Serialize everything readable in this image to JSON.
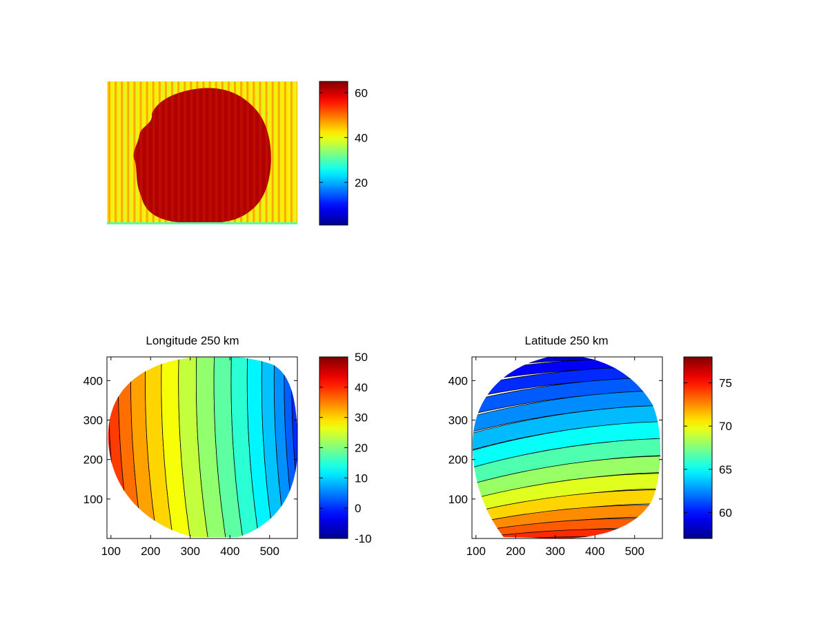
{
  "figure": {
    "colormap": "jet",
    "colormap_stops": [
      "#00008f",
      "#0000ff",
      "#00ffff",
      "#ffff00",
      "#ff0000",
      "#800000"
    ]
  },
  "chart_data": [
    {
      "id": "image-panel",
      "type": "heatmap",
      "title": "",
      "xlabel": "",
      "ylabel": "",
      "axes_visible": false,
      "description_values": {
        "background_level": 42,
        "disk_level": 62,
        "edge_line_level": 30
      },
      "colorbar": {
        "range": [
          1,
          65
        ],
        "ticks": [
          20,
          40,
          60
        ]
      }
    },
    {
      "id": "longitude-panel",
      "type": "heatmap",
      "title": "Longitude 250 km",
      "xlabel": "",
      "ylabel": "",
      "xlim": [
        90,
        570
      ],
      "ylim": [
        0,
        460
      ],
      "xticks": [
        100,
        200,
        300,
        400,
        500
      ],
      "yticks": [
        100,
        200,
        300,
        400
      ],
      "contour_lines": true,
      "colorbar": {
        "range": [
          -10,
          50
        ],
        "ticks": [
          -10,
          0,
          10,
          20,
          30,
          40,
          50
        ]
      },
      "bands": [
        {
          "value": 45
        },
        {
          "value": 42
        },
        {
          "value": 39
        },
        {
          "value": 36
        },
        {
          "value": 33
        },
        {
          "value": 30
        },
        {
          "value": 27
        },
        {
          "value": 24
        },
        {
          "value": 21
        },
        {
          "value": 18
        },
        {
          "value": 15
        },
        {
          "value": 12
        },
        {
          "value": 9
        },
        {
          "value": 6
        },
        {
          "value": 3
        },
        {
          "value": 0
        }
      ]
    },
    {
      "id": "latitude-panel",
      "type": "heatmap",
      "title": "Latitude 250 km",
      "xlabel": "",
      "ylabel": "",
      "xlim": [
        90,
        570
      ],
      "ylim": [
        0,
        460
      ],
      "xticks": [
        100,
        200,
        300,
        400,
        500
      ],
      "yticks": [
        100,
        200,
        300,
        400
      ],
      "contour_lines": true,
      "colorbar": {
        "range": [
          57,
          78
        ],
        "ticks": [
          60,
          65,
          70,
          75
        ]
      },
      "bands": [
        {
          "value": 57.5
        },
        {
          "value": 58.5
        },
        {
          "value": 59.5
        },
        {
          "value": 60.5
        },
        {
          "value": 61.5
        },
        {
          "value": 62.5
        },
        {
          "value": 63.5
        },
        {
          "value": 65
        },
        {
          "value": 66.5
        },
        {
          "value": 68
        },
        {
          "value": 69.5
        },
        {
          "value": 71
        },
        {
          "value": 72.5
        },
        {
          "value": 73.5
        },
        {
          "value": 74.5
        },
        {
          "value": 75.5
        }
      ]
    }
  ]
}
